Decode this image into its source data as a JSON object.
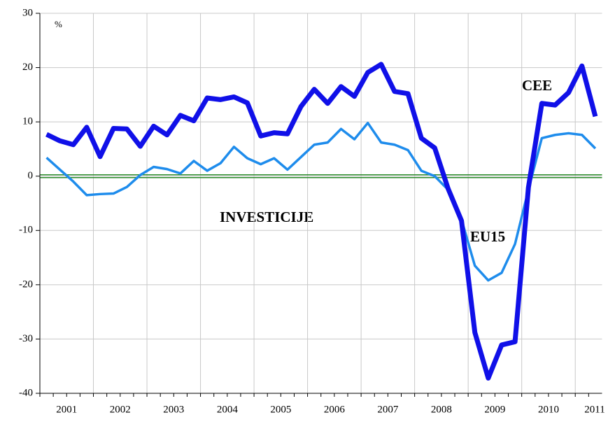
{
  "chart_data": {
    "type": "line",
    "y_label": "%",
    "annotations": [
      "CEE",
      "EU15",
      "INVESTICIJE"
    ],
    "categories": [
      "2001",
      null,
      null,
      null,
      "2002",
      null,
      null,
      null,
      "2003",
      null,
      null,
      null,
      "2004",
      null,
      null,
      null,
      "2005",
      null,
      null,
      null,
      "2006",
      null,
      null,
      null,
      "2007",
      null,
      null,
      null,
      "2008",
      null,
      null,
      null,
      "2009",
      null,
      null,
      null,
      "2010",
      null,
      null,
      null,
      "2011",
      null
    ],
    "series": [
      {
        "name": "CEE",
        "color": "#1010e8",
        "values": [
          7.7,
          6.5,
          5.8,
          9.0,
          3.6,
          8.8,
          8.7,
          5.5,
          9.2,
          7.6,
          11.2,
          10.2,
          14.4,
          14.1,
          14.6,
          13.5,
          7.4,
          8.0,
          7.8,
          12.8,
          16.0,
          13.4,
          16.5,
          14.7,
          19.1,
          20.6,
          15.6,
          15.2,
          7.0,
          5.2,
          -2.3,
          -8.2,
          -28.8,
          -37.2,
          -31.1,
          -30.5,
          -2.1,
          13.4,
          13.1,
          15.4,
          20.3,
          11.0
        ]
      },
      {
        "name": "EU15",
        "color": "#1e8cec",
        "values": [
          3.4,
          1.2,
          -1.0,
          -3.5,
          -3.3,
          -3.2,
          -2.0,
          0.2,
          1.7,
          1.3,
          0.5,
          2.8,
          1.0,
          2.4,
          5.4,
          3.3,
          2.2,
          3.3,
          1.2,
          3.5,
          5.8,
          6.2,
          8.7,
          6.8,
          9.8,
          6.2,
          5.8,
          4.8,
          1.0,
          0.0,
          -2.5,
          -8.0,
          -16.5,
          -19.2,
          -17.8,
          -12.5,
          -2.5,
          7.0,
          7.6,
          7.9,
          7.6,
          5.1
        ]
      }
    ],
    "ylim": [
      -40,
      30
    ],
    "yticks": [
      30,
      20,
      10,
      0,
      -10,
      -20,
      -30,
      -40
    ],
    "grid": true
  }
}
